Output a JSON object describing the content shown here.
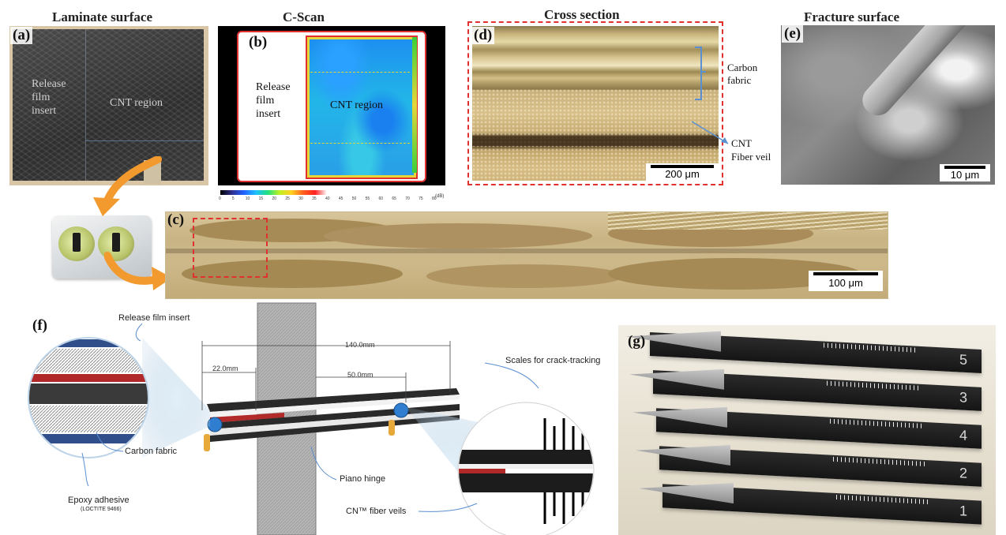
{
  "titles": {
    "a": "Laminate surface",
    "b": "C-Scan",
    "d": "Cross section",
    "e": "Fracture surface"
  },
  "panel_labels": {
    "a": "(a)",
    "b": "(b)",
    "c": "(c)",
    "d": "(d)",
    "e": "(e)",
    "f": "(f)",
    "g": "(g)"
  },
  "panel_a": {
    "release_label": "Release\nfilm\ninsert",
    "cnt_label": "CNT region"
  },
  "panel_b": {
    "release_label": "Release\nfilm\ninsert",
    "cnt_label": "CNT region",
    "colorbar_ticks": [
      "0",
      "5",
      "10",
      "15",
      "20",
      "25",
      "30",
      "35",
      "40",
      "45",
      "50",
      "55",
      "60",
      "65",
      "70",
      "75",
      "80"
    ],
    "colorbar_unit": "(dB)"
  },
  "panel_c": {
    "scale": "100 μm"
  },
  "panel_d": {
    "carbon_fabric": "Carbon\nfabric",
    "cnt_veil": "CNT\nFiber veil",
    "scale": "200 μm"
  },
  "panel_e": {
    "scale": "10 μm"
  },
  "panel_f": {
    "release_insert": "Release film insert",
    "carbon_fabric": "Carbon fabric",
    "epoxy": "Epoxy adhesive",
    "loctite": "(LOCTITE 9466)",
    "piano_hinge": "Piano hinge",
    "scales": "Scales for crack-tracking",
    "cnt_veils": "CN™ fiber veils",
    "dim_140": "140.0mm",
    "dim_22": "22.0mm",
    "dim_50": "50.0mm"
  },
  "panel_g": {
    "specimen_numbers": [
      "5",
      "3",
      "4",
      "2",
      "1"
    ]
  },
  "colors": {
    "dashed_red": "#e03030",
    "arrow_orange": "#f29a2e",
    "anno_blue": "#5a8fd0"
  }
}
